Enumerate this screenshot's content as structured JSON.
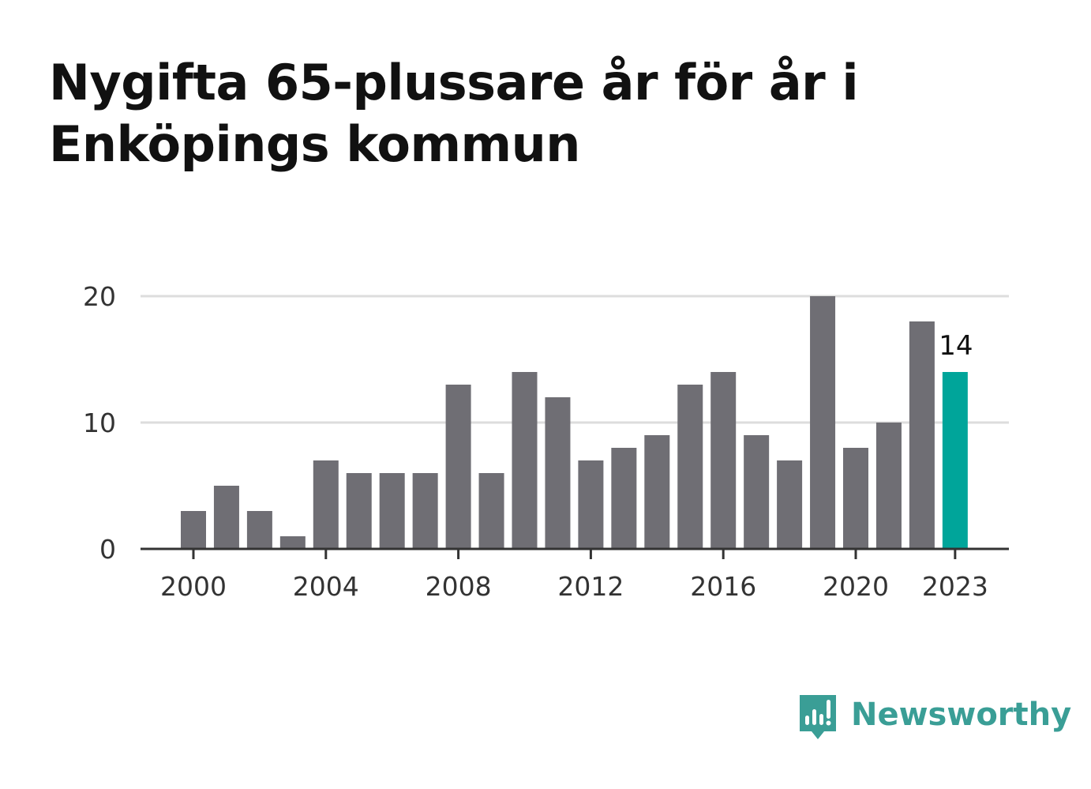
{
  "chart_data": {
    "type": "bar",
    "title": "Nygifta 65-plussare år för år i Enköpings kommun",
    "xlabel": "",
    "ylabel": "",
    "categories": [
      2000,
      2001,
      2002,
      2003,
      2004,
      2005,
      2006,
      2007,
      2008,
      2009,
      2010,
      2011,
      2012,
      2013,
      2014,
      2015,
      2016,
      2017,
      2018,
      2019,
      2020,
      2021,
      2022,
      2023
    ],
    "values": [
      3,
      5,
      3,
      1,
      7,
      6,
      6,
      6,
      13,
      6,
      14,
      12,
      7,
      8,
      9,
      13,
      14,
      9,
      7,
      20,
      8,
      10,
      18,
      14
    ],
    "ylim": [
      0,
      20
    ],
    "y_ticks": [
      0,
      10,
      20
    ],
    "x_ticks": [
      2000,
      2004,
      2008,
      2012,
      2016,
      2020,
      2023
    ],
    "grid": true,
    "highlight": {
      "category": 2023,
      "label": "14"
    },
    "colors": {
      "bar": "#6f6e74",
      "highlight": "#00a59a",
      "grid": "#dddddd",
      "axis": "#333333"
    }
  },
  "brand": {
    "name": "Newsworthy",
    "icon": "newsworthy-logo-icon",
    "color": "#3a9e96"
  }
}
